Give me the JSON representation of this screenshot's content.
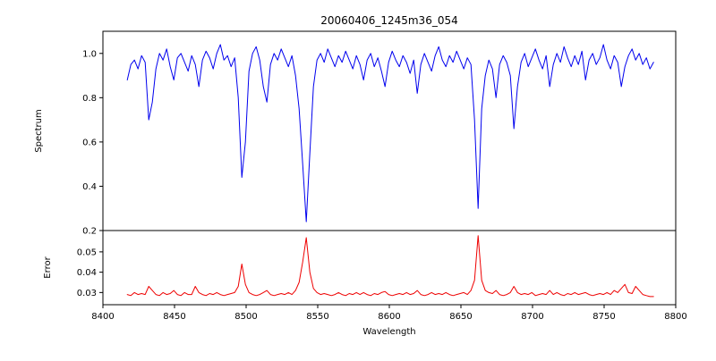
{
  "title": "20060406_1245m36_054",
  "chart_data": {
    "type": "line",
    "title": "20060406_1245m36_054",
    "xlabel": "Wavelength",
    "grid": false,
    "legend": null,
    "xlim": [
      8400,
      8800
    ],
    "x_ticks": [
      8400,
      8450,
      8500,
      8550,
      8600,
      8650,
      8700,
      8750,
      8800
    ],
    "x_start": 8417,
    "x_step": 2.5,
    "panels": [
      {
        "name": "spectrum",
        "ylabel": "Spectrum",
        "color": "#0000ee",
        "ylim": [
          0.2,
          1.1
        ],
        "yticks": [
          0.2,
          0.4,
          0.6,
          0.8,
          1.0
        ],
        "ytick_labels": [
          "0.2",
          "0.4",
          "0.6",
          "0.8",
          "1.0"
        ],
        "notable_features": "absorption lines near 8433, 8498, 8542, 8662, 8688; continuum ~0.97",
        "values": [
          0.88,
          0.95,
          0.97,
          0.93,
          0.99,
          0.96,
          0.7,
          0.78,
          0.93,
          1.0,
          0.97,
          1.02,
          0.94,
          0.88,
          0.98,
          1.0,
          0.96,
          0.92,
          0.99,
          0.95,
          0.85,
          0.97,
          1.01,
          0.98,
          0.93,
          1.0,
          1.04,
          0.97,
          0.99,
          0.94,
          0.98,
          0.8,
          0.44,
          0.6,
          0.92,
          1.0,
          1.03,
          0.97,
          0.85,
          0.78,
          0.95,
          1.0,
          0.97,
          1.02,
          0.98,
          0.94,
          0.99,
          0.9,
          0.75,
          0.5,
          0.24,
          0.55,
          0.85,
          0.97,
          1.0,
          0.96,
          1.02,
          0.98,
          0.94,
          0.99,
          0.96,
          1.01,
          0.97,
          0.93,
          0.99,
          0.95,
          0.88,
          0.97,
          1.0,
          0.94,
          0.98,
          0.92,
          0.85,
          0.96,
          1.01,
          0.97,
          0.94,
          0.99,
          0.96,
          0.91,
          0.97,
          0.82,
          0.95,
          1.0,
          0.96,
          0.92,
          0.99,
          1.03,
          0.97,
          0.94,
          0.99,
          0.96,
          1.01,
          0.97,
          0.93,
          0.98,
          0.95,
          0.7,
          0.3,
          0.75,
          0.9,
          0.97,
          0.93,
          0.8,
          0.95,
          0.99,
          0.96,
          0.9,
          0.66,
          0.85,
          0.96,
          1.0,
          0.94,
          0.98,
          1.02,
          0.97,
          0.93,
          0.99,
          0.85,
          0.95,
          1.0,
          0.96,
          1.03,
          0.98,
          0.94,
          0.99,
          0.95,
          1.01,
          0.88,
          0.97,
          1.0,
          0.95,
          0.98,
          1.04,
          0.97,
          0.93,
          0.99,
          0.96,
          0.85,
          0.94,
          0.99,
          1.02,
          0.97,
          1.0,
          0.95,
          0.98,
          0.93,
          0.96
        ]
      },
      {
        "name": "error",
        "ylabel": "Error",
        "color": "#ee0000",
        "ylim": [
          0.024,
          0.0605
        ],
        "yticks": [
          0.03,
          0.04,
          0.05
        ],
        "ytick_labels": [
          "0.03",
          "0.04",
          "0.05"
        ],
        "notable_features": "baseline ~0.029 with peaks at 8498 (~0.044), 8542 (~0.057), 8662 (~0.058)",
        "values": [
          0.029,
          0.0285,
          0.03,
          0.029,
          0.0295,
          0.029,
          0.033,
          0.031,
          0.029,
          0.0285,
          0.03,
          0.029,
          0.0295,
          0.031,
          0.029,
          0.0285,
          0.03,
          0.029,
          0.029,
          0.033,
          0.03,
          0.029,
          0.0285,
          0.0295,
          0.029,
          0.03,
          0.029,
          0.0285,
          0.029,
          0.0295,
          0.03,
          0.033,
          0.044,
          0.034,
          0.03,
          0.029,
          0.0285,
          0.029,
          0.03,
          0.031,
          0.029,
          0.0285,
          0.029,
          0.0295,
          0.029,
          0.03,
          0.029,
          0.031,
          0.035,
          0.045,
          0.057,
          0.04,
          0.032,
          0.03,
          0.029,
          0.0295,
          0.029,
          0.0285,
          0.029,
          0.03,
          0.029,
          0.0285,
          0.0295,
          0.029,
          0.03,
          0.029,
          0.03,
          0.029,
          0.0285,
          0.0295,
          0.029,
          0.03,
          0.0305,
          0.029,
          0.0285,
          0.029,
          0.0295,
          0.029,
          0.03,
          0.029,
          0.0295,
          0.031,
          0.029,
          0.0285,
          0.029,
          0.03,
          0.029,
          0.0295,
          0.029,
          0.03,
          0.029,
          0.0285,
          0.029,
          0.0295,
          0.03,
          0.029,
          0.031,
          0.036,
          0.058,
          0.036,
          0.031,
          0.03,
          0.0295,
          0.031,
          0.029,
          0.0285,
          0.029,
          0.03,
          0.033,
          0.03,
          0.029,
          0.0295,
          0.029,
          0.03,
          0.0285,
          0.029,
          0.0295,
          0.029,
          0.031,
          0.029,
          0.03,
          0.029,
          0.0285,
          0.0295,
          0.029,
          0.03,
          0.029,
          0.0295,
          0.03,
          0.029,
          0.0285,
          0.029,
          0.0295,
          0.029,
          0.03,
          0.029,
          0.031,
          0.03,
          0.032,
          0.034,
          0.03,
          0.0295,
          0.033,
          0.031,
          0.029,
          0.0285,
          0.028,
          0.028
        ]
      }
    ]
  }
}
